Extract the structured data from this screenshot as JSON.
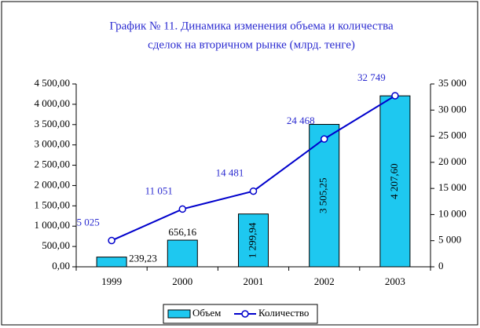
{
  "chart_data": {
    "type": "bar",
    "title": [
      "График № 11. Динамика изменения объема и количества",
      "сделок на вторичном рынке (млрд. тенге)"
    ],
    "categories": [
      "1999",
      "2000",
      "2001",
      "2002",
      "2003"
    ],
    "series": [
      {
        "name": "Объем",
        "type": "bar",
        "color": "#1ec8f0",
        "values": [
          239.23,
          656.16,
          1299.94,
          3505.25,
          4207.6
        ],
        "value_labels": [
          "239,23",
          "656,16",
          "1 299,94",
          "3 505,25",
          "4 207,60"
        ]
      },
      {
        "name": "Количество",
        "type": "line",
        "axis": "y2",
        "color": "#0000cc",
        "values": [
          5025,
          11051,
          14481,
          24468,
          32749
        ],
        "value_labels": [
          "5 025",
          "11 051",
          "14 481",
          "24 468",
          "32 749"
        ]
      }
    ],
    "ylim": [
      0,
      4500
    ],
    "yticks": [
      {
        "value": 0,
        "label": "0,00"
      },
      {
        "value": 500,
        "label": "500,00"
      },
      {
        "value": 1000,
        "label": "1 000,00"
      },
      {
        "value": 1500,
        "label": "1 500,00"
      },
      {
        "value": 2000,
        "label": "2 000,00"
      },
      {
        "value": 2500,
        "label": "2 500,00"
      },
      {
        "value": 3000,
        "label": "3 000,00"
      },
      {
        "value": 3500,
        "label": "3 500,00"
      },
      {
        "value": 4000,
        "label": "4 000,00"
      },
      {
        "value": 4500,
        "label": "4 500,00"
      }
    ],
    "y2lim": [
      0,
      35000
    ],
    "y2ticks": [
      0,
      {
        "value": 5000,
        "label": "5 000"
      },
      {
        "value": 10000,
        "label": "10 000"
      },
      {
        "value": 15000,
        "label": "15 000"
      },
      {
        "value": 20000,
        "label": "20 000"
      },
      {
        "value": 25000,
        "label": "25 000"
      },
      {
        "value": 30000,
        "label": "30 000"
      },
      {
        "value": 35000,
        "label": "35 000"
      }
    ],
    "legend": "bottom",
    "grid": false
  }
}
